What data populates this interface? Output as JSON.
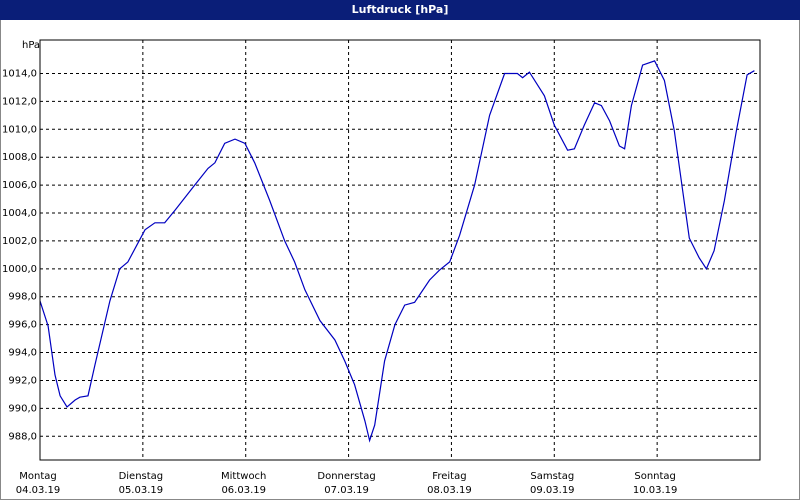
{
  "chart_data": {
    "type": "line",
    "title": "Luftdruck [hPa]",
    "y_unit": "hPa",
    "x": [
      0,
      1.9,
      3.5,
      4.7,
      6.3,
      8.2,
      9.3,
      11.2,
      12.8,
      16.3,
      18.6,
      20.5,
      24.5,
      26.8,
      29.1,
      31.5,
      36.1,
      39.2,
      40.8,
      43.1,
      45.5,
      47.8,
      50.1,
      53.6,
      57.1,
      59.4,
      61.8,
      65.3,
      68.8,
      71.1,
      73.4,
      75.8,
      76.9,
      78.1,
      80.4,
      82.8,
      85.1,
      87.4,
      90.9,
      93.2,
      95.6,
      97.9,
      101.4,
      104.9,
      108.4,
      111.4,
      112.6,
      114.2,
      117.7,
      120.0,
      123.1,
      124.7,
      127.0,
      129.4,
      131.0,
      132.9,
      135.2,
      136.4,
      138.0,
      140.6,
      143.4,
      145.7,
      148.0,
      151.5,
      153.8,
      155.5,
      157.3,
      159.7,
      162.5,
      165.0,
      166.7
    ],
    "series": [
      {
        "name": "Luftdruck",
        "color": "#0000c0",
        "values": [
          997.7,
          995.9,
          992.4,
          990.9,
          990.1,
          990.6,
          990.8,
          990.9,
          993.1,
          997.7,
          1000.0,
          1000.5,
          1002.8,
          1003.3,
          1003.3,
          1004.2,
          1006.0,
          1007.2,
          1007.6,
          1009.0,
          1009.3,
          1009.0,
          1007.6,
          1004.9,
          1002.0,
          1000.5,
          998.5,
          996.3,
          994.9,
          993.4,
          991.7,
          989.1,
          987.7,
          988.8,
          993.4,
          996.0,
          997.4,
          997.6,
          999.2,
          999.9,
          1000.5,
          1002.4,
          1006.0,
          1011.0,
          1014.0,
          1014.0,
          1013.7,
          1014.1,
          1012.4,
          1010.3,
          1008.5,
          1008.6,
          1010.3,
          1011.9,
          1011.7,
          1010.6,
          1008.8,
          1008.6,
          1011.7,
          1014.6,
          1014.9,
          1013.5,
          1009.9,
          1002.2,
          1000.8,
          1000.0,
          1001.3,
          1004.9,
          1009.9,
          1013.9,
          1014.2
        ]
      }
    ],
    "xlim": [
      0,
      168
    ],
    "xticks": [
      {
        "value": 0,
        "label": "Montag",
        "date": "04.03.19"
      },
      {
        "value": 24,
        "label": "Dienstag",
        "date": "05.03.19"
      },
      {
        "value": 48,
        "label": "Mittwoch",
        "date": "06.03.19"
      },
      {
        "value": 72,
        "label": "Donnerstag",
        "date": "07.03.19"
      },
      {
        "value": 96,
        "label": "Freitag",
        "date": "08.03.19"
      },
      {
        "value": 120,
        "label": "Samstag",
        "date": "09.03.19"
      },
      {
        "value": 144,
        "label": "Sonntag",
        "date": "10.03.19"
      }
    ],
    "ylim": [
      986.3,
      1016.4
    ],
    "yticks": [
      {
        "value": 988,
        "label": "988,0"
      },
      {
        "value": 990,
        "label": "990,0"
      },
      {
        "value": 992,
        "label": "992,0"
      },
      {
        "value": 994,
        "label": "994,0"
      },
      {
        "value": 996,
        "label": "996,0"
      },
      {
        "value": 998,
        "label": "998,0"
      },
      {
        "value": 1000,
        "label": "1000,0"
      },
      {
        "value": 1002,
        "label": "1002,0"
      },
      {
        "value": 1004,
        "label": "1004,0"
      },
      {
        "value": 1006,
        "label": "1006,0"
      },
      {
        "value": 1008,
        "label": "1008,0"
      },
      {
        "value": 1010,
        "label": "1010,0"
      },
      {
        "value": 1012,
        "label": "1012,0"
      },
      {
        "value": 1014,
        "label": "1014,0"
      }
    ],
    "grid": true
  }
}
